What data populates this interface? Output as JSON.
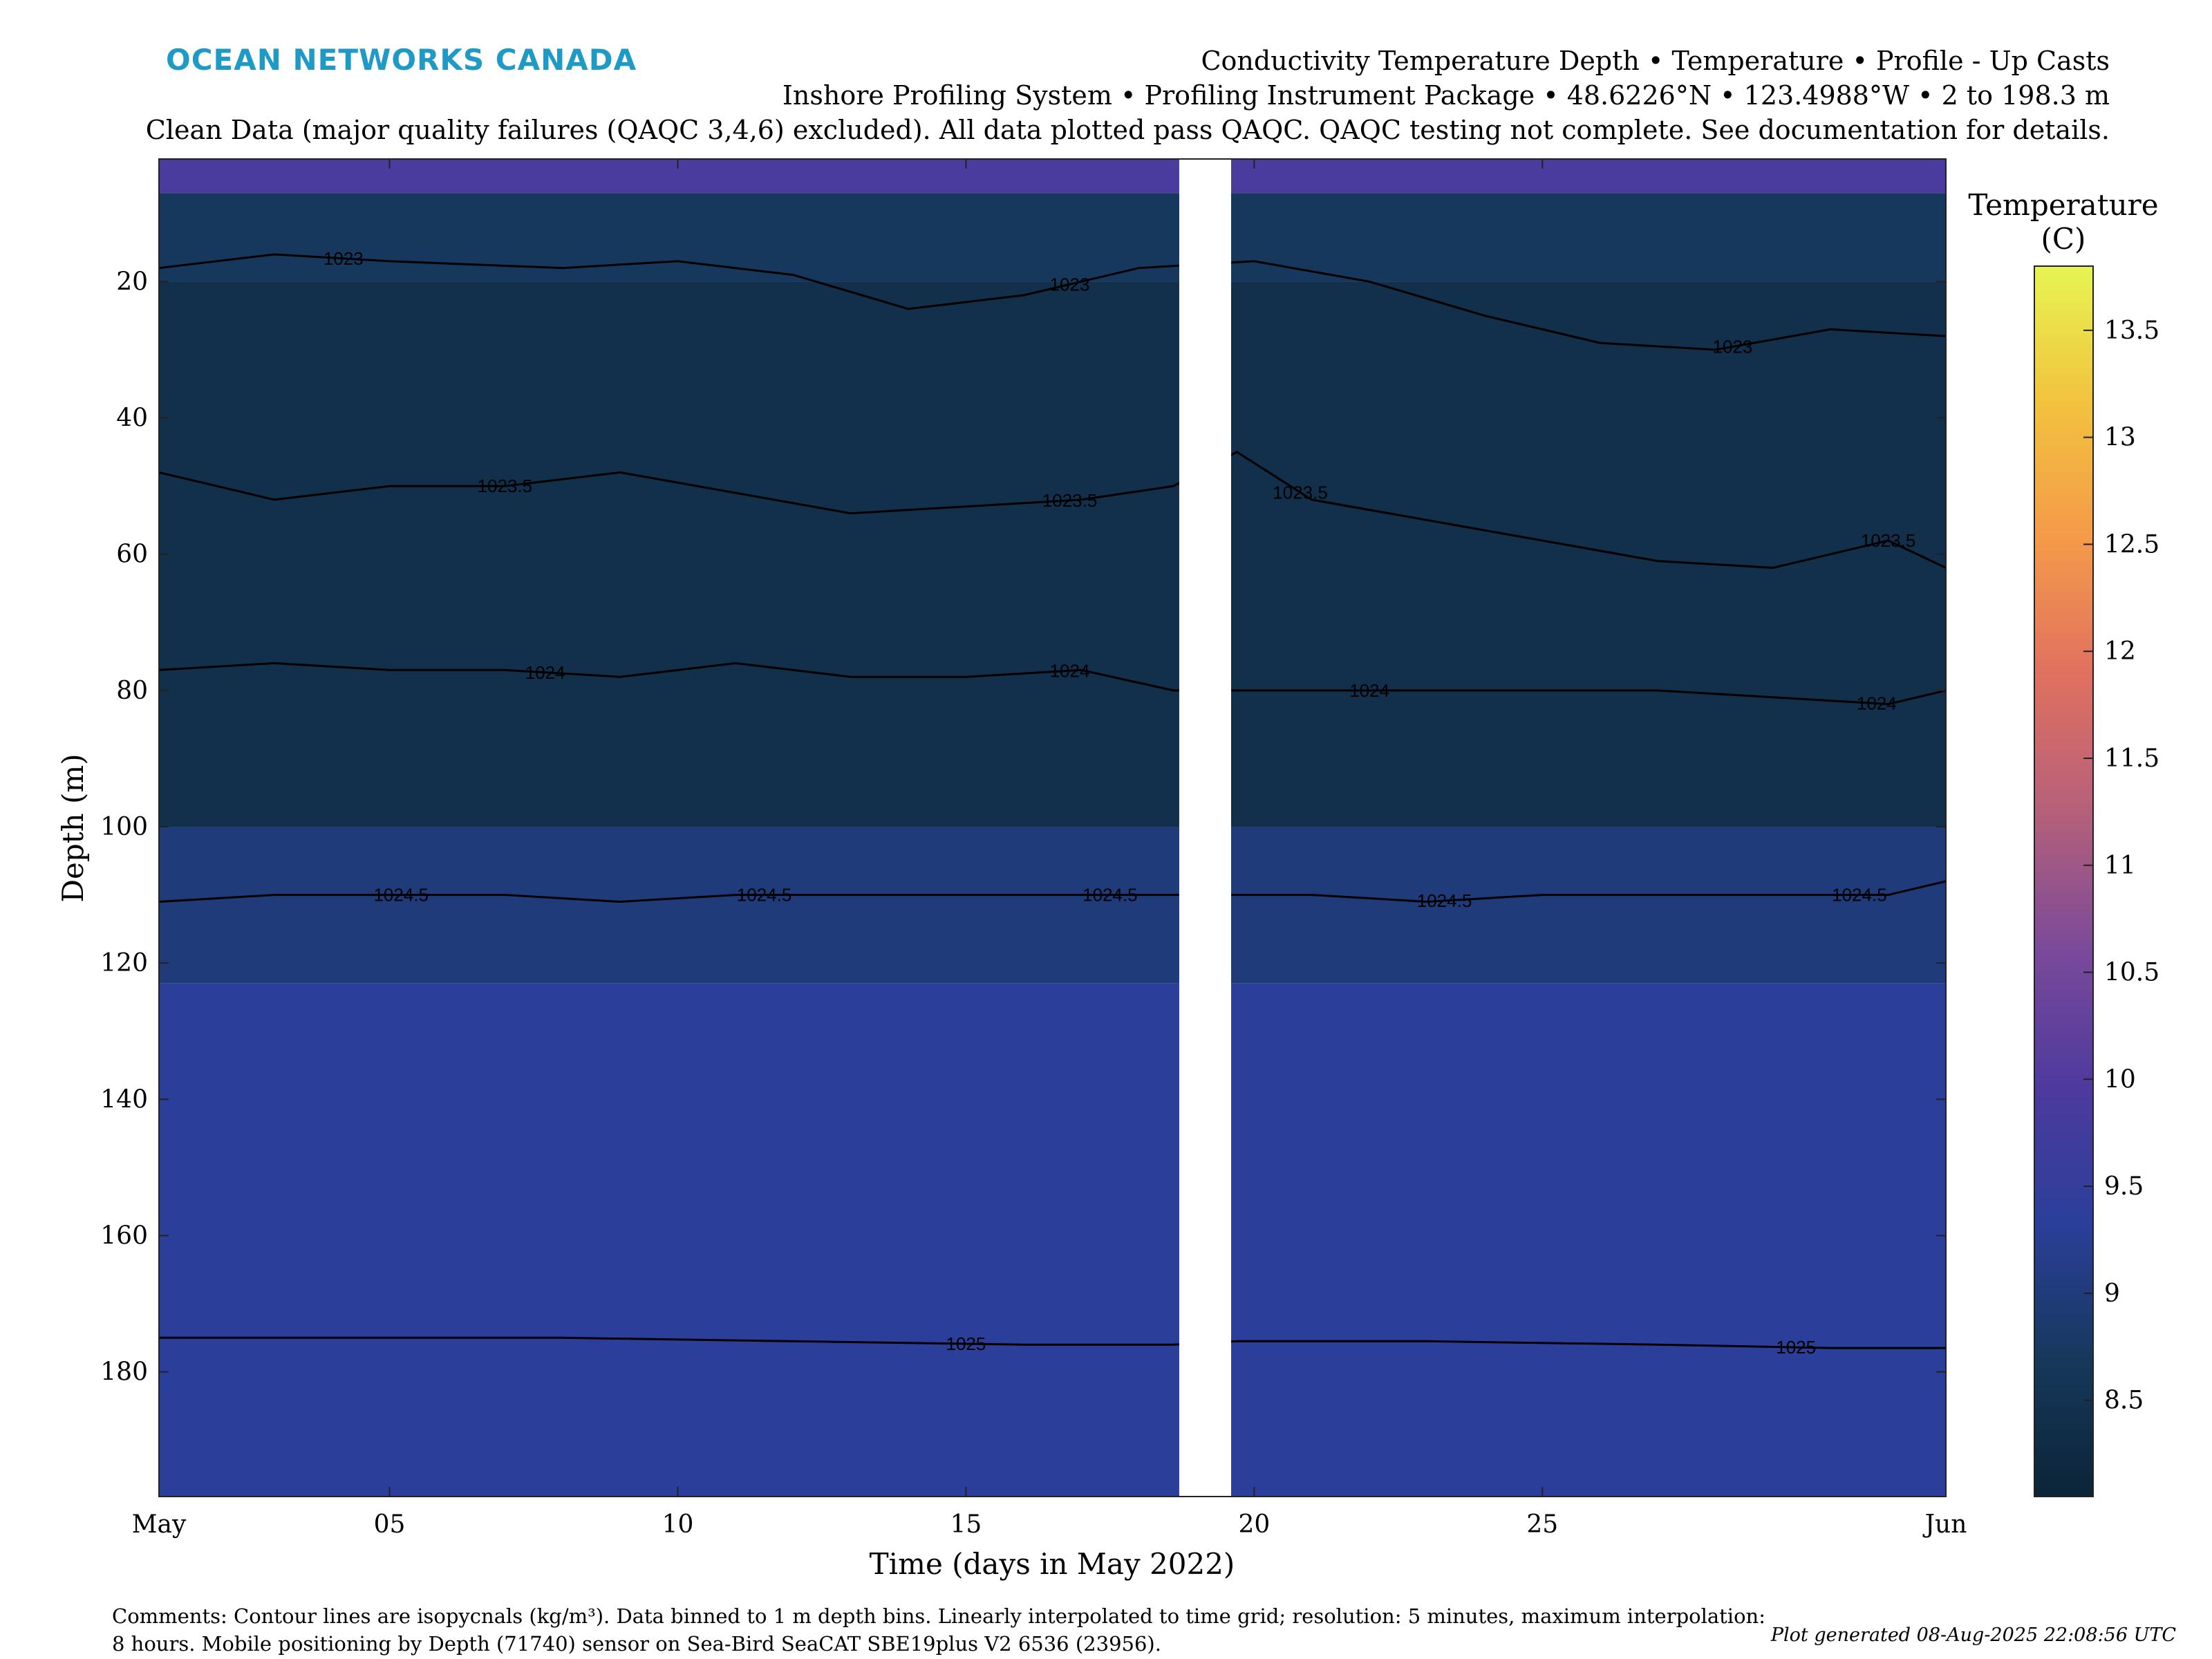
{
  "brand": "OCEAN NETWORKS CANADA",
  "header": {
    "title_line1": "Conductivity Temperature Depth • Temperature • Profile - Up Casts",
    "title_line2": "Inshore Profiling System • Profiling Instrument Package • 48.6226°N • 123.4988°W • 2 to 198.3 m",
    "title_line3": "Clean Data (major quality failures (QAQC 3,4,6) excluded). All data plotted pass QAQC. QAQC testing not complete. See documentation for details."
  },
  "chart_data": {
    "type": "heatmap",
    "xlabel": "Time (days in May 2022)",
    "ylabel": "Depth (m)",
    "x_unit": "day of May 2022",
    "xlim": [
      1,
      32
    ],
    "ylim": [
      198.3,
      2
    ],
    "y_reversed": true,
    "x_ticks": [
      {
        "value": 1,
        "label": "May"
      },
      {
        "value": 5,
        "label": "05"
      },
      {
        "value": 10,
        "label": "10"
      },
      {
        "value": 15,
        "label": "15"
      },
      {
        "value": 20,
        "label": "20"
      },
      {
        "value": 25,
        "label": "25"
      },
      {
        "value": 32,
        "label": "Jun"
      }
    ],
    "y_ticks": [
      20,
      40,
      60,
      80,
      100,
      120,
      140,
      160,
      180
    ],
    "data_gap": {
      "start_day": 18.7,
      "end_day": 19.6
    },
    "colorbar": {
      "title_line1": "Temperature",
      "title_line2": "(C)",
      "min": 8.05,
      "max": 13.8,
      "ticks": [
        8.5,
        9,
        9.5,
        10,
        10.5,
        11,
        11.5,
        12,
        12.5,
        13,
        13.5
      ],
      "tick_labels": [
        "8.5",
        "9",
        "9.5",
        "10",
        "10.5",
        "11",
        "11.5",
        "12",
        "12.5",
        "13",
        "13.5"
      ],
      "colormap": [
        "#0b2437",
        "#17385c",
        "#2a3f9a",
        "#4e3a9e",
        "#7a4a9a",
        "#b5607a",
        "#e07060",
        "#f49a4a",
        "#f2c23e",
        "#e6f553"
      ]
    },
    "temperature_bands": [
      {
        "depth_top": 2,
        "depth_bottom": 7,
        "temp": 9.9
      },
      {
        "depth_top": 7,
        "depth_bottom": 20,
        "temp": 8.7
      },
      {
        "depth_top": 20,
        "depth_bottom": 100,
        "temp": 8.4
      },
      {
        "depth_top": 100,
        "depth_bottom": 123,
        "temp": 9.0
      },
      {
        "depth_top": 123,
        "depth_bottom": 198.3,
        "temp": 9.35
      }
    ],
    "contours": {
      "unit": "kg/m^3",
      "series": [
        {
          "name": "1023",
          "label_positions": [
            4.2,
            16.8,
            28.3
          ],
          "depths": [
            [
              1,
              18
            ],
            [
              3,
              16
            ],
            [
              5,
              17
            ],
            [
              8,
              18
            ],
            [
              10,
              17
            ],
            [
              12,
              19
            ],
            [
              14,
              24
            ],
            [
              16,
              22
            ],
            [
              18,
              18
            ],
            [
              20,
              17
            ],
            [
              22,
              20
            ],
            [
              24,
              25
            ],
            [
              26,
              29
            ],
            [
              28,
              30
            ],
            [
              30,
              27
            ],
            [
              32,
              28
            ]
          ]
        },
        {
          "name": "1023.5",
          "label_positions": [
            7.0,
            16.8,
            20.8,
            31.0
          ],
          "depths": [
            [
              1,
              48
            ],
            [
              3,
              52
            ],
            [
              5,
              50
            ],
            [
              7,
              50
            ],
            [
              9,
              48
            ],
            [
              11,
              51
            ],
            [
              13,
              54
            ],
            [
              15,
              53
            ],
            [
              17,
              52
            ],
            [
              18.6,
              50
            ],
            [
              19.7,
              45
            ],
            [
              21,
              52
            ],
            [
              23,
              55
            ],
            [
              25,
              58
            ],
            [
              27,
              61
            ],
            [
              29,
              62
            ],
            [
              31,
              58
            ],
            [
              32,
              62
            ]
          ]
        },
        {
          "name": "1024",
          "label_positions": [
            7.7,
            16.8,
            22.0,
            30.8
          ],
          "depths": [
            [
              1,
              77
            ],
            [
              3,
              76
            ],
            [
              5,
              77
            ],
            [
              7,
              77
            ],
            [
              9,
              78
            ],
            [
              11,
              76
            ],
            [
              13,
              78
            ],
            [
              15,
              78
            ],
            [
              17,
              77
            ],
            [
              18.6,
              80
            ],
            [
              19.7,
              80
            ],
            [
              21,
              80
            ],
            [
              23,
              80
            ],
            [
              25,
              80
            ],
            [
              27,
              80
            ],
            [
              29,
              81
            ],
            [
              31,
              82
            ],
            [
              32,
              80
            ]
          ]
        },
        {
          "name": "1024.5",
          "label_positions": [
            5.2,
            11.5,
            17.5,
            23.3,
            30.5
          ],
          "depths": [
            [
              1,
              111
            ],
            [
              3,
              110
            ],
            [
              5,
              110
            ],
            [
              7,
              110
            ],
            [
              9,
              111
            ],
            [
              11,
              110
            ],
            [
              13,
              110
            ],
            [
              15,
              110
            ],
            [
              17,
              110
            ],
            [
              18.6,
              110
            ],
            [
              19.7,
              110
            ],
            [
              21,
              110
            ],
            [
              23,
              111
            ],
            [
              25,
              110
            ],
            [
              27,
              110
            ],
            [
              29,
              110
            ],
            [
              31,
              110
            ],
            [
              32,
              108
            ]
          ]
        },
        {
          "name": "1025",
          "label_positions": [
            15.0,
            29.4
          ],
          "depths": [
            [
              1,
              175
            ],
            [
              4,
              175
            ],
            [
              8,
              175
            ],
            [
              12,
              175.5
            ],
            [
              16,
              176
            ],
            [
              18.6,
              176
            ],
            [
              19.7,
              175.5
            ],
            [
              23,
              175.5
            ],
            [
              27,
              176
            ],
            [
              30,
              176.5
            ],
            [
              32,
              176.5
            ]
          ]
        }
      ]
    }
  },
  "footer": {
    "comments_line1": "Comments: Contour lines are isopycnals (kg/m³). Data binned to 1 m depth bins. Linearly interpolated to time grid; resolution: 5 minutes, maximum interpolation:",
    "comments_line2": "8 hours. Mobile positioning by Depth (71740) sensor on Sea-Bird SeaCAT SBE19plus V2 6536 (23956).",
    "generated": "Plot generated 08-Aug-2025 22:08:56 UTC"
  }
}
